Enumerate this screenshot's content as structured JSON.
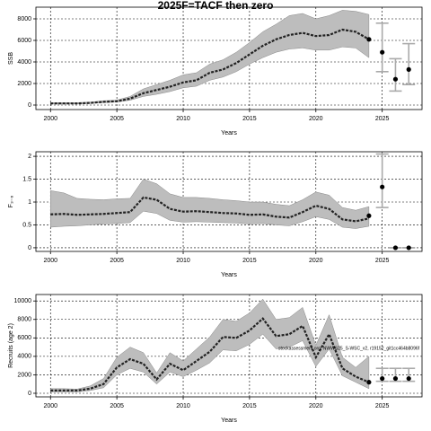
{
  "chart_data": [
    {
      "type": "line",
      "title": "2025F=TACF then zero",
      "xlabel": "Years",
      "ylabel": "SSB",
      "xlim": [
        1998.9,
        2028
      ],
      "ylim": [
        -417,
        9083
      ],
      "xticks": [
        2000,
        2005,
        2010,
        2015,
        2020,
        2025
      ],
      "yticks": [
        0,
        2000,
        4000,
        6000,
        8000
      ],
      "grid": true,
      "x": [
        2000,
        2001,
        2002,
        2003,
        2004,
        2005,
        2006,
        2007,
        2008,
        2009,
        2010,
        2011,
        2012,
        2013,
        2014,
        2015,
        2016,
        2017,
        2018,
        2019,
        2020,
        2021,
        2022,
        2023,
        2024
      ],
      "series": [
        {
          "color": "#222222",
          "values": [
            150,
            150,
            150,
            200,
            300,
            350,
            600,
            1100,
            1400,
            1700,
            2100,
            2300,
            3000,
            3300,
            3900,
            4700,
            5500,
            6100,
            6500,
            6700,
            6400,
            6500,
            7000,
            6800,
            6100
          ]
        }
      ],
      "band_low": [
        100,
        100,
        100,
        150,
        220,
        280,
        450,
        800,
        1000,
        1250,
        1600,
        1750,
        2300,
        2600,
        3100,
        3800,
        4400,
        4900,
        5200,
        5300,
        5100,
        5100,
        5400,
        5300,
        4400
      ],
      "band_high": [
        220,
        220,
        220,
        270,
        400,
        460,
        800,
        1500,
        1900,
        2300,
        2800,
        3000,
        3800,
        4200,
        4900,
        5800,
        6800,
        7500,
        8300,
        8500,
        8000,
        8300,
        8800,
        8700,
        8400
      ],
      "band_color": "#bdbdbd",
      "proj_x": [
        2025,
        2026,
        2027
      ],
      "proj_values": [
        4900,
        2400,
        3300
      ],
      "proj_low": [
        3100,
        1300,
        1900
      ],
      "proj_high": [
        7600,
        4300,
        5700
      ]
    },
    {
      "type": "line",
      "xlabel": "Years",
      "ylabel": "F₃₋₆",
      "xlim": [
        1998.9,
        2028
      ],
      "ylim": [
        -0.08,
        2.1
      ],
      "xticks": [
        2000,
        2005,
        2010,
        2015,
        2020,
        2025
      ],
      "yticks": [
        0.0,
        0.5,
        1.0,
        1.5,
        2.0
      ],
      "grid": true,
      "x": [
        2000,
        2001,
        2002,
        2003,
        2004,
        2005,
        2006,
        2007,
        2008,
        2009,
        2010,
        2011,
        2012,
        2013,
        2014,
        2015,
        2016,
        2017,
        2018,
        2019,
        2020,
        2021,
        2022,
        2023,
        2024
      ],
      "series": [
        {
          "color": "#222222",
          "values": [
            0.73,
            0.74,
            0.72,
            0.73,
            0.74,
            0.76,
            0.78,
            1.1,
            1.05,
            0.85,
            0.79,
            0.8,
            0.78,
            0.76,
            0.75,
            0.72,
            0.73,
            0.68,
            0.66,
            0.78,
            0.92,
            0.85,
            0.62,
            0.58,
            0.64
          ]
        }
      ],
      "band_low": [
        0.45,
        0.47,
        0.48,
        0.5,
        0.52,
        0.53,
        0.55,
        0.8,
        0.75,
        0.6,
        0.56,
        0.57,
        0.56,
        0.55,
        0.54,
        0.52,
        0.53,
        0.5,
        0.48,
        0.57,
        0.68,
        0.62,
        0.45,
        0.42,
        0.47
      ],
      "band_high": [
        1.25,
        1.2,
        1.08,
        1.06,
        1.05,
        1.07,
        1.08,
        1.5,
        1.4,
        1.18,
        1.1,
        1.1,
        1.08,
        1.05,
        1.03,
        1.0,
        1.0,
        0.95,
        0.92,
        1.05,
        1.22,
        1.15,
        0.88,
        0.82,
        0.9
      ],
      "band_color": "#bdbdbd",
      "last_value": 0.7,
      "proj_x": [
        2025,
        2026,
        2027
      ],
      "proj_values": [
        1.33,
        0,
        0
      ],
      "proj_low": [
        0.88,
        0,
        0
      ],
      "proj_high": [
        2.05,
        0,
        0
      ]
    },
    {
      "type": "line",
      "xlabel": "Years",
      "ylabel": "Recruits (age 2)",
      "annotation": "stockassessment.org, NWWS25_S-WSC_v2, r19152_git1cc464b8096f",
      "xlim": [
        1998.9,
        2028
      ],
      "ylim": [
        -390,
        10700
      ],
      "xticks": [
        2000,
        2005,
        2010,
        2015,
        2020,
        2025
      ],
      "yticks": [
        0,
        2000,
        4000,
        6000,
        8000,
        10000
      ],
      "grid": true,
      "x": [
        2000,
        2001,
        2002,
        2003,
        2004,
        2005,
        2006,
        2007,
        2008,
        2009,
        2010,
        2011,
        2012,
        2013,
        2014,
        2015,
        2016,
        2017,
        2018,
        2019,
        2020,
        2021,
        2022,
        2023,
        2024
      ],
      "series": [
        {
          "color": "#222222",
          "values": [
            300,
            300,
            300,
            500,
            1000,
            2800,
            3700,
            3200,
            1500,
            3200,
            2500,
            3500,
            4500,
            6100,
            6000,
            6800,
            8100,
            6200,
            6400,
            7300,
            3900,
            6400,
            2700,
            1800,
            1200
          ]
        }
      ],
      "band_low": [
        150,
        150,
        150,
        300,
        600,
        2000,
        2700,
        2300,
        1000,
        2300,
        1800,
        2500,
        3300,
        4700,
        4600,
        5300,
        6400,
        4800,
        5000,
        5700,
        2900,
        4800,
        1900,
        1200,
        500
      ],
      "band_high": [
        500,
        500,
        450,
        800,
        1600,
        3900,
        5000,
        4400,
        2200,
        4400,
        3500,
        4800,
        6100,
        8000,
        7800,
        8700,
        10200,
        8000,
        8200,
        9300,
        5200,
        8500,
        3900,
        2800,
        4000
      ],
      "band_color": "#bdbdbd",
      "proj_x": [
        2025,
        2026,
        2027
      ],
      "proj_values": [
        1600,
        1600,
        1600
      ],
      "proj_low": [
        1300,
        1300,
        1300
      ],
      "proj_high": [
        2700,
        2700,
        2700
      ]
    }
  ]
}
